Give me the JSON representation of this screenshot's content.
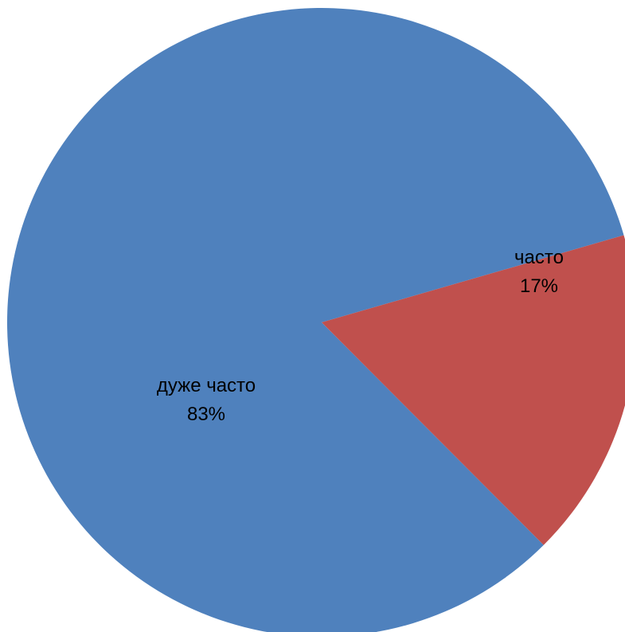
{
  "chart_data": {
    "type": "pie",
    "title": "",
    "slices": [
      {
        "label": "дуже часто",
        "value": 83,
        "value_label": "83%",
        "color": "#4F81BD"
      },
      {
        "label": "часто",
        "value": 17,
        "value_label": "17%",
        "color": "#C0504D"
      }
    ],
    "legend": "none",
    "data_labels": "category and percentage inside slices"
  }
}
